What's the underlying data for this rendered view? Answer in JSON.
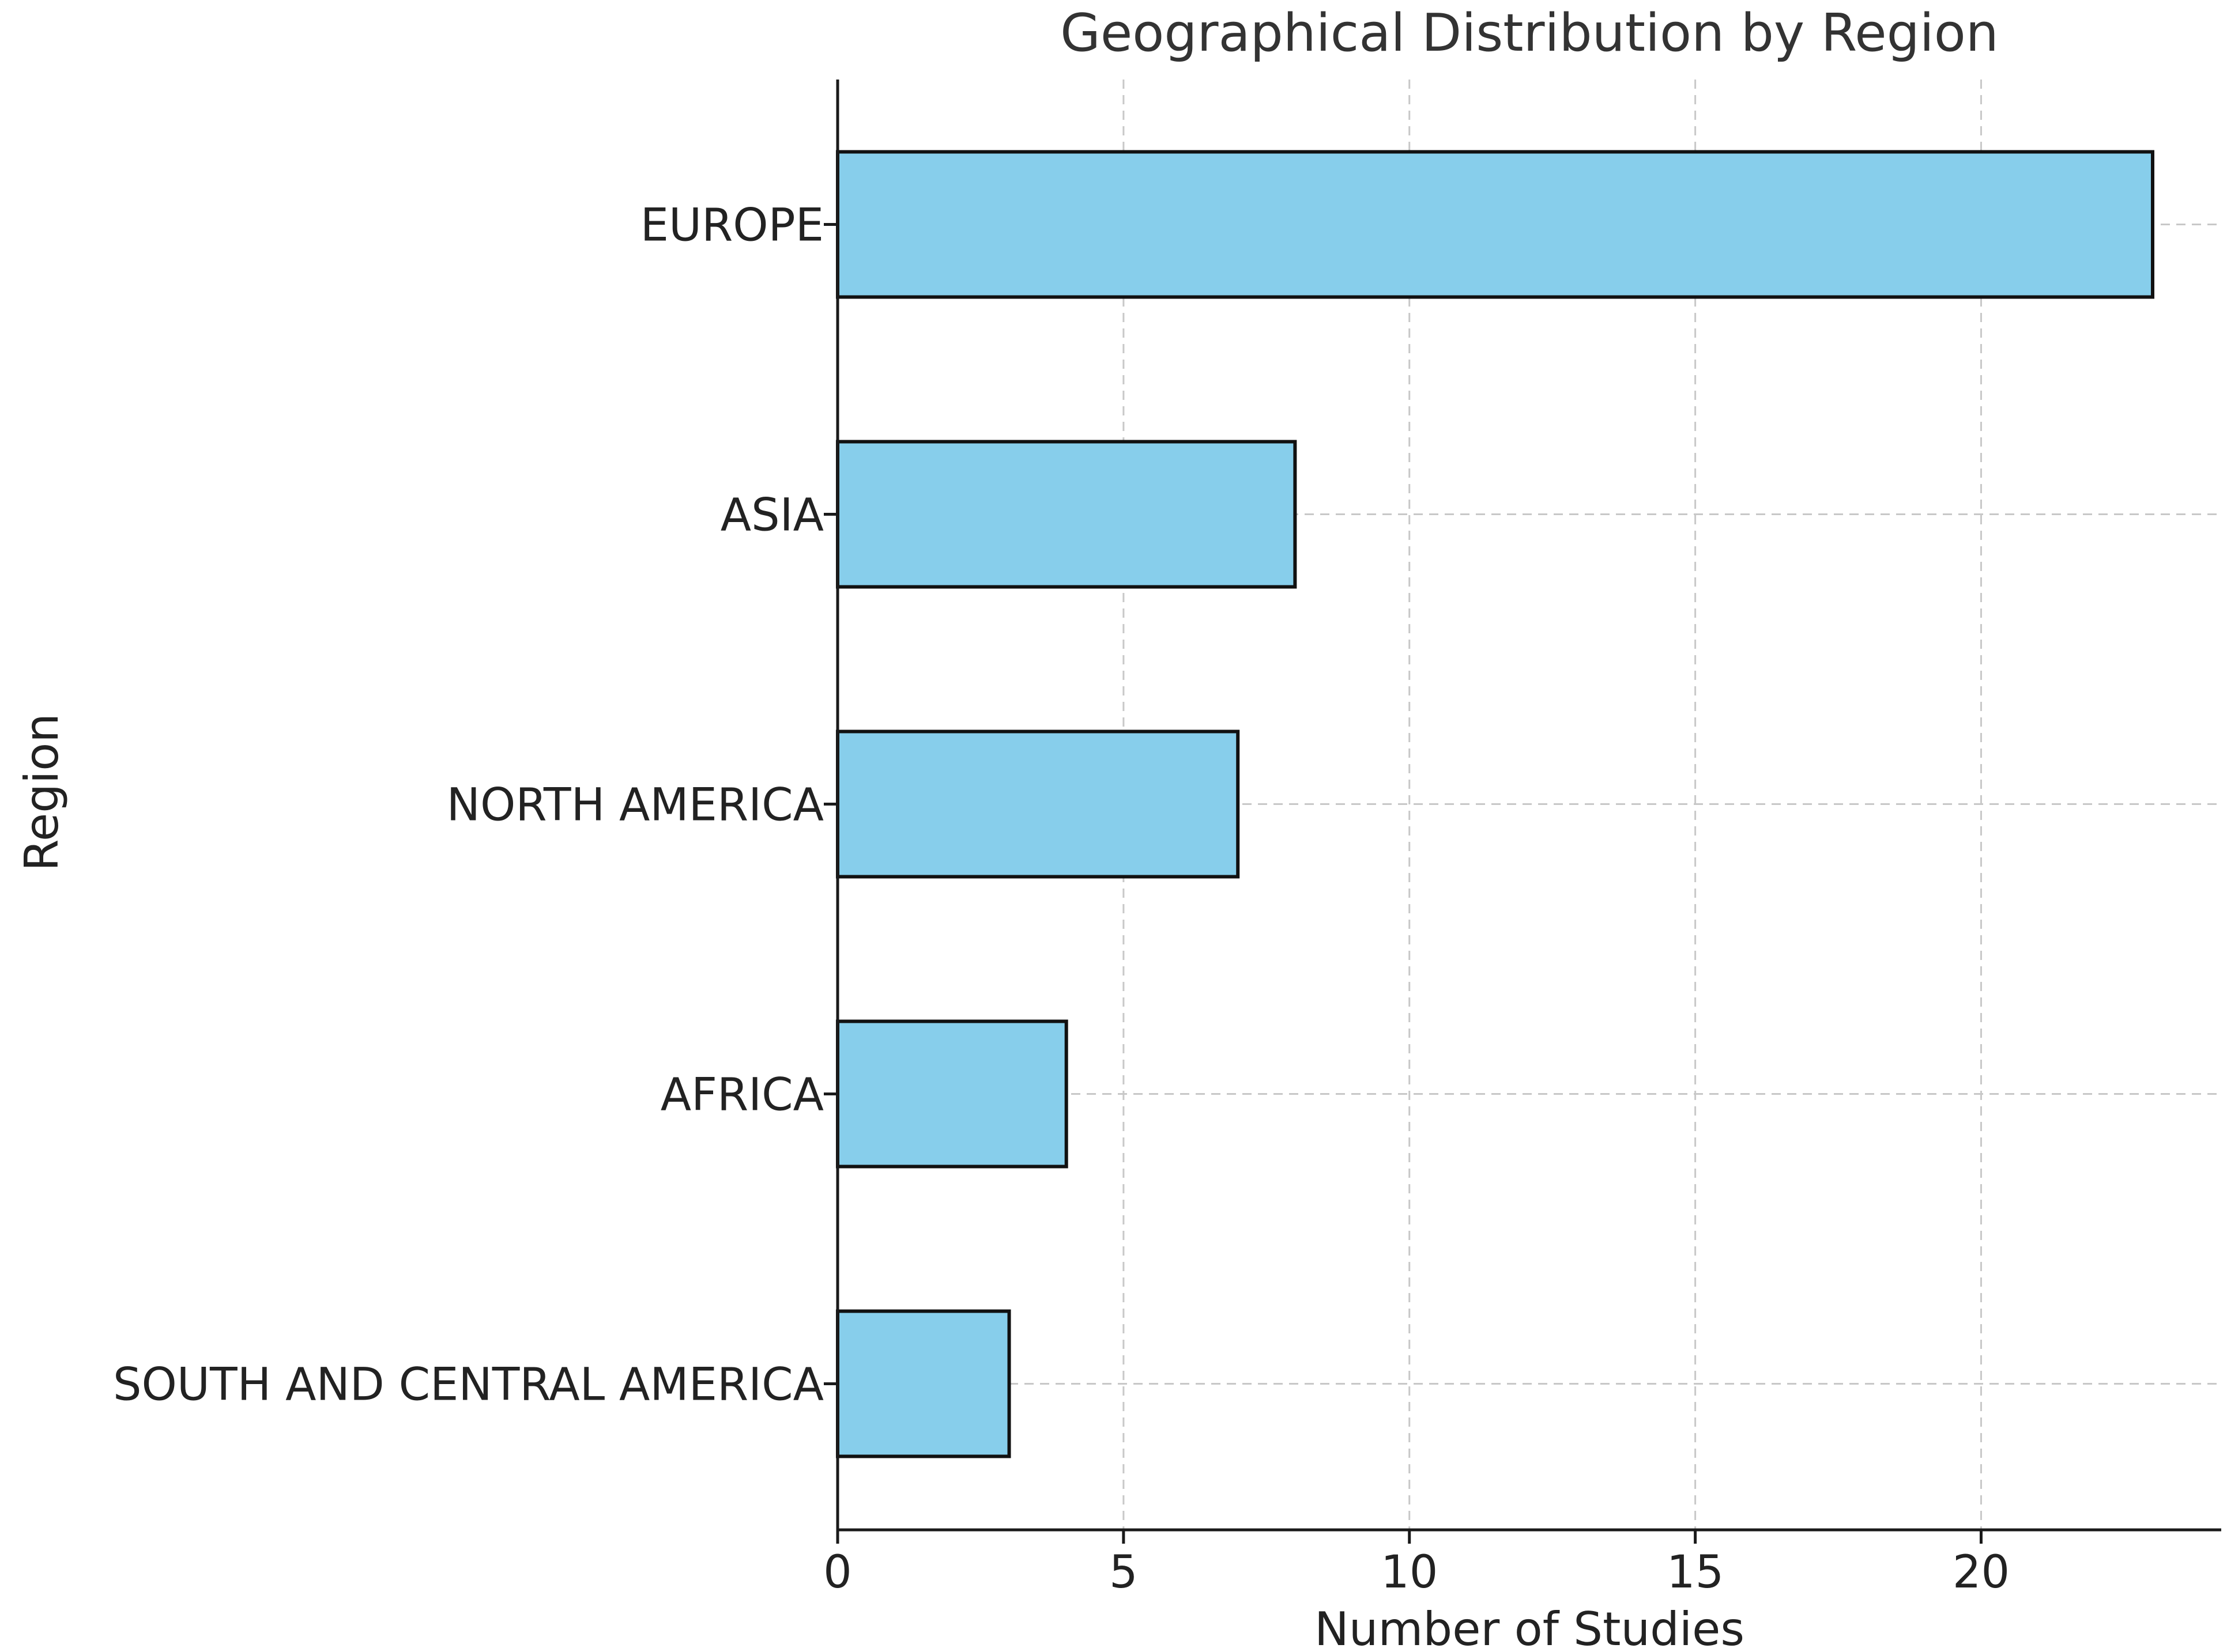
{
  "chart_data": {
    "type": "bar",
    "orientation": "horizontal",
    "title": "Geographical Distribution by Region",
    "xlabel": "Number of Studies",
    "ylabel": "Region",
    "categories": [
      "EUROPE",
      "ASIA",
      "NORTH AMERICA",
      "AFRICA",
      "SOUTH AND CENTRAL AMERICA"
    ],
    "values": [
      23,
      8,
      7,
      4,
      3
    ],
    "xlim": [
      0,
      24.2
    ],
    "xticks": [
      0,
      5,
      10,
      15,
      20
    ],
    "grid": true,
    "bar_color": "#87CEEB",
    "edge_color": "#111111"
  }
}
